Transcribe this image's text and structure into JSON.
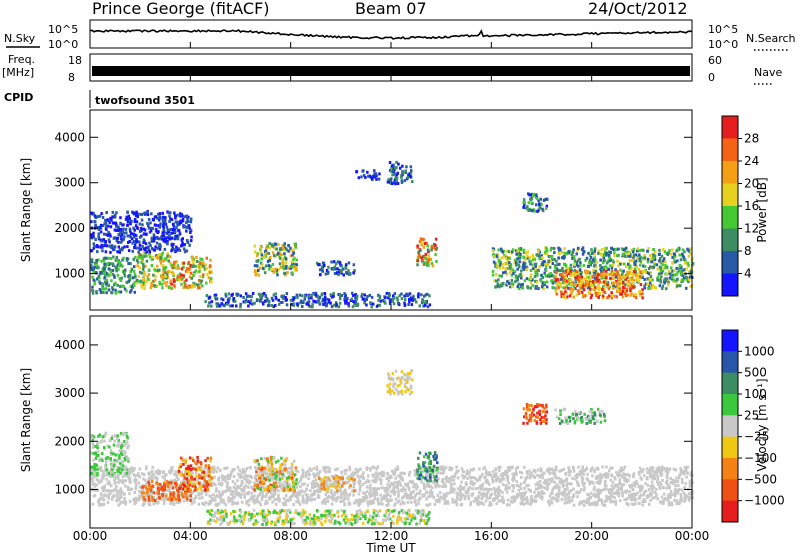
{
  "header": {
    "station": "Prince George (fitACF)",
    "beam": "Beam 07",
    "date": "24/Oct/2012"
  },
  "noise_panel": {
    "left_label": "N.Sky",
    "right_label": "N.Search",
    "ticks": [
      "10^5",
      "10^0"
    ],
    "right_ticks": [
      "10^5",
      "10^0"
    ]
  },
  "freq_panel": {
    "left_label_line1": "Freq.",
    "left_label_line2": "[MHz]",
    "left_ticks": [
      "18",
      "8"
    ],
    "right_label": "Nave",
    "right_ticks": [
      "60",
      "0"
    ]
  },
  "cpid_panel": {
    "label": "CPID",
    "program": "twofsound 3501"
  },
  "time_axis": {
    "label": "Time UT",
    "ticks": [
      "00:00",
      "04:00",
      "08:00",
      "12:00",
      "16:00",
      "20:00",
      "00:00"
    ]
  },
  "colors": {
    "power": [
      "#1414ff",
      "#285aa8",
      "#3c8c64",
      "#46c832",
      "#e6d21e",
      "#f5a014",
      "#f56414",
      "#e61e1e"
    ],
    "velocity": [
      "#1414ff",
      "#2856a8",
      "#3c8c64",
      "#3cc83c",
      "#c8c8c8",
      "#f0c814",
      "#f58214",
      "#f05014",
      "#e61e1e"
    ]
  },
  "chart_data": [
    {
      "type": "heatmap",
      "ylabel": "Slant Range [km]",
      "ylim": [
        200,
        4600
      ],
      "yticks": [
        "4000",
        "3000",
        "2000",
        "1000"
      ],
      "xlim": [
        0,
        24
      ],
      "colorbar": {
        "label": "Power [dB]",
        "ticks": [
          "28",
          "24",
          "20",
          "16",
          "12",
          "8",
          "4"
        ]
      },
      "cells": [
        [
          0.0,
          1.8,
          600,
          1400,
          1,
          3
        ],
        [
          1.8,
          3.2,
          700,
          1500,
          2,
          5
        ],
        [
          3.2,
          4.0,
          700,
          1300,
          3,
          7
        ],
        [
          4.0,
          4.8,
          700,
          1400,
          2,
          6
        ],
        [
          0.0,
          4.0,
          1500,
          2400,
          0,
          1
        ],
        [
          6.5,
          8.2,
          1000,
          1700,
          1,
          5
        ],
        [
          9.0,
          10.5,
          1000,
          1300,
          0,
          2
        ],
        [
          11.8,
          12.8,
          3000,
          3500,
          0,
          2
        ],
        [
          13.0,
          13.8,
          1200,
          1800,
          2,
          7
        ],
        [
          10.5,
          11.5,
          3100,
          3300,
          0,
          1
        ],
        [
          16.0,
          24.0,
          700,
          1600,
          1,
          4
        ],
        [
          18.5,
          22.0,
          500,
          1100,
          4,
          7
        ],
        [
          17.2,
          18.2,
          2400,
          2800,
          0,
          3
        ],
        [
          4.5,
          13.5,
          300,
          600,
          0,
          2
        ]
      ]
    },
    {
      "type": "heatmap",
      "ylabel": "Slant Range [km]",
      "ylim": [
        200,
        4600
      ],
      "yticks": [
        "4000",
        "3000",
        "2000",
        "1000"
      ],
      "xlim": [
        0,
        24
      ],
      "colorbar": {
        "label": "Velocity [m s⁻¹]",
        "ticks": [
          "1000",
          "500",
          "100",
          "25",
          "−25",
          "−100",
          "−500",
          "−1000"
        ]
      },
      "cells": [
        [
          0.0,
          24.0,
          700,
          1500,
          4,
          4
        ],
        [
          0.0,
          1.5,
          1300,
          2200,
          3,
          4
        ],
        [
          2.0,
          4.0,
          800,
          1200,
          6,
          7
        ],
        [
          3.5,
          4.8,
          1000,
          1700,
          5,
          8
        ],
        [
          6.5,
          8.2,
          1000,
          1700,
          3,
          7
        ],
        [
          9.0,
          10.5,
          1000,
          1300,
          4,
          6
        ],
        [
          11.8,
          12.8,
          3000,
          3500,
          4,
          5
        ],
        [
          13.0,
          13.8,
          1200,
          1800,
          1,
          3
        ],
        [
          17.2,
          18.2,
          2400,
          2800,
          6,
          8
        ],
        [
          18.5,
          20.5,
          2400,
          2700,
          2,
          4
        ],
        [
          4.5,
          13.5,
          300,
          600,
          3,
          5
        ]
      ]
    }
  ]
}
